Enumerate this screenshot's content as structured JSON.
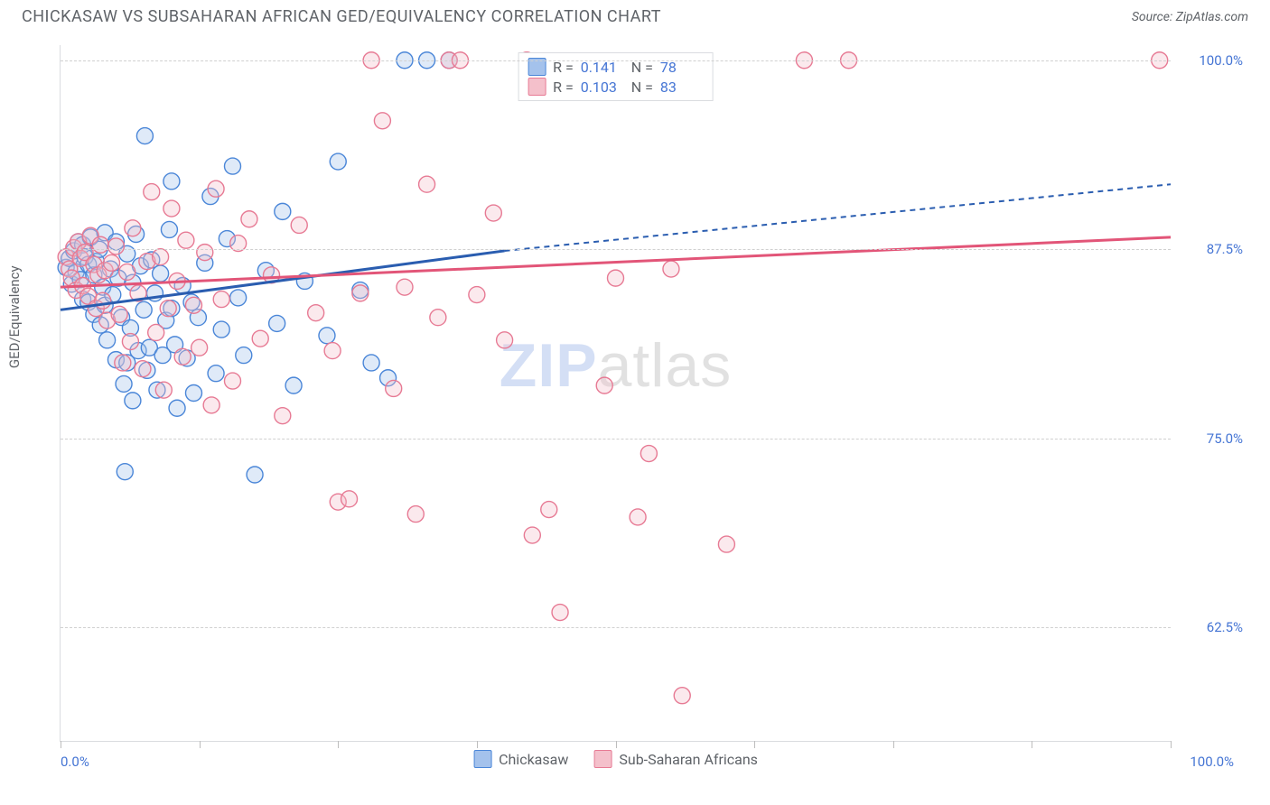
{
  "title": "CHICKASAW VS SUBSAHARAN AFRICAN GED/EQUIVALENCY CORRELATION CHART",
  "source_label": "Source: ZipAtlas.com",
  "ylabel": "GED/Equivalency",
  "watermark_bold": "ZIP",
  "watermark_rest": "atlas",
  "chart": {
    "type": "scatter",
    "xlim": [
      0,
      100
    ],
    "ylim": [
      55,
      101
    ],
    "yticks": [
      62.5,
      75.0,
      87.5,
      100.0
    ],
    "ytick_labels": [
      "62.5%",
      "75.0%",
      "87.5%",
      "100.0%"
    ],
    "xtick_positions": [
      0,
      12.5,
      25,
      37.5,
      50,
      62.5,
      75,
      87.5,
      100
    ],
    "xlim_labels": {
      "min": "0.0%",
      "max": "100.0%"
    },
    "grid_color": "#d0d0d0",
    "axis_color": "#dadce0",
    "tick_label_color": "#4575d4",
    "marker_radius": 9,
    "marker_stroke_width": 1.4,
    "marker_fill_opacity": 0.35,
    "trend_width": 3,
    "dash_pattern": "6 5"
  },
  "series": [
    {
      "name": "Chickasaw",
      "fill": "#a4c2ec",
      "stroke": "#4a86d8",
      "trend_color": "#2a5db0",
      "R": "0.141",
      "N": "78",
      "trend_solid": {
        "x1": 0,
        "y1": 83.5,
        "x2": 40,
        "y2": 87.4
      },
      "trend_dash": {
        "x1": 40,
        "y1": 87.4,
        "x2": 100,
        "y2": 91.8
      },
      "points": [
        [
          0.5,
          86.3
        ],
        [
          0.8,
          86.9
        ],
        [
          1,
          85.2
        ],
        [
          1.2,
          87.4
        ],
        [
          1.4,
          86
        ],
        [
          1.6,
          88
        ],
        [
          1.8,
          85.5
        ],
        [
          2,
          87.8
        ],
        [
          2,
          84.2
        ],
        [
          2.2,
          87
        ],
        [
          2.5,
          86.5
        ],
        [
          2.5,
          84
        ],
        [
          2.7,
          88.3
        ],
        [
          3,
          85.8
        ],
        [
          3,
          83.2
        ],
        [
          3.2,
          86.7
        ],
        [
          3.5,
          87.5
        ],
        [
          3.6,
          82.5
        ],
        [
          3.8,
          85
        ],
        [
          4,
          88.6
        ],
        [
          4,
          83.8
        ],
        [
          4.2,
          81.5
        ],
        [
          4.5,
          86.2
        ],
        [
          4.7,
          84.5
        ],
        [
          5,
          88
        ],
        [
          5,
          80.2
        ],
        [
          5.2,
          85.6
        ],
        [
          5.5,
          83
        ],
        [
          5.7,
          78.6
        ],
        [
          5.8,
          72.8
        ],
        [
          6,
          87.2
        ],
        [
          6,
          80
        ],
        [
          6.3,
          82.3
        ],
        [
          6.5,
          85.3
        ],
        [
          6.5,
          77.5
        ],
        [
          6.8,
          88.5
        ],
        [
          7,
          80.8
        ],
        [
          7.2,
          86.4
        ],
        [
          7.5,
          83.5
        ],
        [
          7.6,
          95
        ],
        [
          7.8,
          79.5
        ],
        [
          8,
          81
        ],
        [
          8.2,
          86.8
        ],
        [
          8.5,
          84.6
        ],
        [
          8.7,
          78.2
        ],
        [
          9,
          85.9
        ],
        [
          9.2,
          80.5
        ],
        [
          9.5,
          82.8
        ],
        [
          9.8,
          88.8
        ],
        [
          10,
          83.6
        ],
        [
          10,
          92
        ],
        [
          10.3,
          81.2
        ],
        [
          10.5,
          77
        ],
        [
          11,
          85.1
        ],
        [
          11.4,
          80.3
        ],
        [
          11.8,
          84
        ],
        [
          12,
          78
        ],
        [
          12.4,
          83
        ],
        [
          13,
          86.6
        ],
        [
          13.5,
          91
        ],
        [
          14,
          79.3
        ],
        [
          14.5,
          82.2
        ],
        [
          15,
          88.2
        ],
        [
          15.5,
          93
        ],
        [
          16,
          84.3
        ],
        [
          16.5,
          80.5
        ],
        [
          17.5,
          72.6
        ],
        [
          18.5,
          86.1
        ],
        [
          19.5,
          82.6
        ],
        [
          20,
          90
        ],
        [
          21,
          78.5
        ],
        [
          22,
          85.4
        ],
        [
          24,
          81.8
        ],
        [
          25,
          93.3
        ],
        [
          27,
          84.8
        ],
        [
          28,
          80
        ],
        [
          29.5,
          79
        ],
        [
          31,
          100
        ],
        [
          33,
          100
        ],
        [
          35,
          100
        ]
      ]
    },
    {
      "name": "Sub-Saharan Africans",
      "fill": "#f4c0cb",
      "stroke": "#e77a94",
      "trend_color": "#e25578",
      "R": "0.103",
      "N": "83",
      "trend_solid": {
        "x1": 0,
        "y1": 85,
        "x2": 100,
        "y2": 88.3
      },
      "trend_dash": null,
      "points": [
        [
          0.5,
          87
        ],
        [
          0.8,
          86.2
        ],
        [
          1,
          85.6
        ],
        [
          1.2,
          87.6
        ],
        [
          1.4,
          84.8
        ],
        [
          1.6,
          88
        ],
        [
          1.8,
          86.9
        ],
        [
          2,
          85.1
        ],
        [
          2.2,
          87.3
        ],
        [
          2.5,
          84.4
        ],
        [
          2.7,
          88.4
        ],
        [
          3,
          86.5
        ],
        [
          3.2,
          83.6
        ],
        [
          3.4,
          85.8
        ],
        [
          3.6,
          87.8
        ],
        [
          3.8,
          84.1
        ],
        [
          4,
          86.1
        ],
        [
          4.2,
          82.8
        ],
        [
          4.6,
          86.6
        ],
        [
          5,
          87.7
        ],
        [
          5.3,
          83.2
        ],
        [
          5.6,
          80
        ],
        [
          6,
          86
        ],
        [
          6.3,
          81.4
        ],
        [
          6.5,
          88.9
        ],
        [
          7,
          84.6
        ],
        [
          7.4,
          79.6
        ],
        [
          7.8,
          86.7
        ],
        [
          8.2,
          91.3
        ],
        [
          8.6,
          82
        ],
        [
          9,
          87
        ],
        [
          9.3,
          78.2
        ],
        [
          9.7,
          83.6
        ],
        [
          10,
          90.2
        ],
        [
          10.5,
          85.4
        ],
        [
          11,
          80.4
        ],
        [
          11.3,
          88.1
        ],
        [
          12,
          83.8
        ],
        [
          12.5,
          81
        ],
        [
          13,
          87.3
        ],
        [
          13.6,
          77.2
        ],
        [
          14,
          91.5
        ],
        [
          14.5,
          84.2
        ],
        [
          15.5,
          78.8
        ],
        [
          16,
          87.9
        ],
        [
          17,
          89.5
        ],
        [
          18,
          81.6
        ],
        [
          19,
          85.8
        ],
        [
          20,
          76.5
        ],
        [
          21.5,
          89.1
        ],
        [
          23,
          83.3
        ],
        [
          24.5,
          80.8
        ],
        [
          25,
          70.8
        ],
        [
          26,
          71
        ],
        [
          27,
          84.6
        ],
        [
          28,
          100
        ],
        [
          29,
          96
        ],
        [
          30,
          78.3
        ],
        [
          31,
          85
        ],
        [
          32,
          70
        ],
        [
          33,
          91.8
        ],
        [
          34,
          83
        ],
        [
          35,
          100
        ],
        [
          36,
          100
        ],
        [
          37.5,
          84.5
        ],
        [
          39,
          89.9
        ],
        [
          40,
          81.5
        ],
        [
          42,
          100
        ],
        [
          42.5,
          68.6
        ],
        [
          44,
          70.3
        ],
        [
          45,
          63.5
        ],
        [
          49,
          78.5
        ],
        [
          50,
          85.6
        ],
        [
          52,
          69.8
        ],
        [
          53,
          74
        ],
        [
          55,
          86.2
        ],
        [
          56,
          58
        ],
        [
          60,
          68
        ],
        [
          67,
          100
        ],
        [
          71,
          100
        ],
        [
          99,
          100
        ]
      ]
    }
  ],
  "stats_legend_labels": {
    "R": "R =",
    "N": "N ="
  },
  "bottom_legend": [
    {
      "label": "Chickasaw",
      "fill": "#a4c2ec",
      "stroke": "#4a86d8"
    },
    {
      "label": "Sub-Saharan Africans",
      "fill": "#f4c0cb",
      "stroke": "#e77a94"
    }
  ]
}
